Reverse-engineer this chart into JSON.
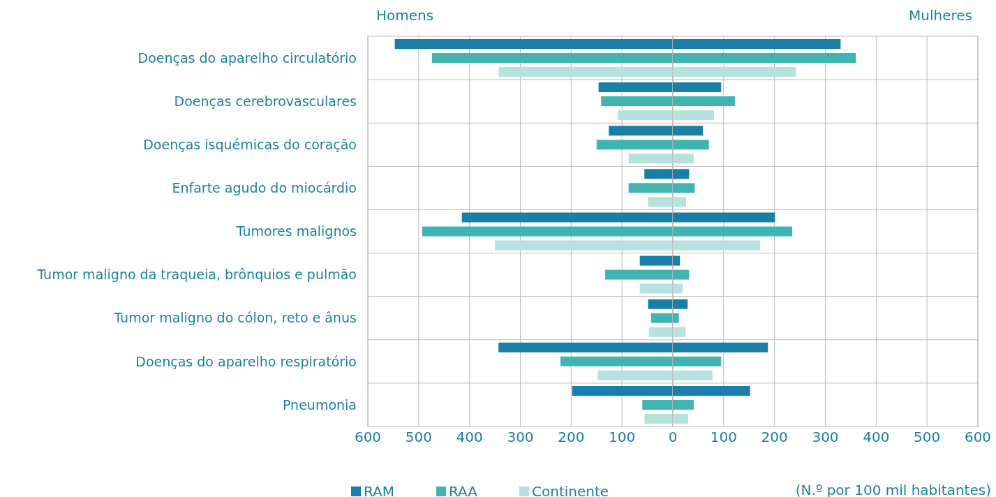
{
  "chart_data": [
    {
      "type": "bar",
      "orientation": "horizontal",
      "title": "Homens",
      "categories": [
        "Doenças do aparelho circulatório",
        "Doenças cerebrovasculares",
        "Doenças isquémicas do coração",
        "Enfarte agudo do miocárdio",
        "Tumores malignos",
        "Tumor maligno da traqueia, brônquios e pulmão",
        "Tumor maligno do cólon, reto e ânus",
        "Doenças do aparelho respiratório",
        "Pneumonia"
      ],
      "series": [
        {
          "name": "RAM",
          "color": "#1a7fa8",
          "values": [
            547,
            146,
            126,
            56,
            415,
            65,
            49,
            343,
            198
          ]
        },
        {
          "name": "RAA",
          "color": "#40b4b0",
          "values": [
            474,
            141,
            150,
            87,
            493,
            133,
            43,
            221,
            60
          ]
        },
        {
          "name": "Continente",
          "color": "#b5e2dc",
          "values": [
            343,
            108,
            87,
            49,
            350,
            65,
            47,
            148,
            56
          ]
        }
      ],
      "xlim": [
        600,
        0
      ],
      "xticks": [
        600,
        500,
        400,
        300,
        200,
        100,
        {
          "value": 0,
          "label": null
        }
      ],
      "grid": true,
      "legend": "bottom"
    },
    {
      "type": "bar",
      "orientation": "horizontal",
      "title": "Mulheres",
      "series": [
        {
          "color": "#1a7fa8",
          "values": [
            330,
            95,
            59,
            32,
            201,
            14,
            29,
            187,
            152
          ]
        },
        {
          "color": "#40b4b0",
          "values": [
            360,
            122,
            71,
            43,
            235,
            32,
            12,
            95,
            41
          ]
        },
        {
          "color": "#b5e2dc",
          "values": [
            242,
            81,
            41,
            26,
            172,
            19,
            25,
            78,
            30
          ]
        }
      ],
      "xlim": [
        0,
        600
      ],
      "xticks": [
        0,
        100,
        200,
        300,
        400,
        500,
        600
      ],
      "tick_labels": "x",
      "grid": true,
      "annotations": [
        "(N.º por 100 mil habitantes)"
      ]
    }
  ]
}
